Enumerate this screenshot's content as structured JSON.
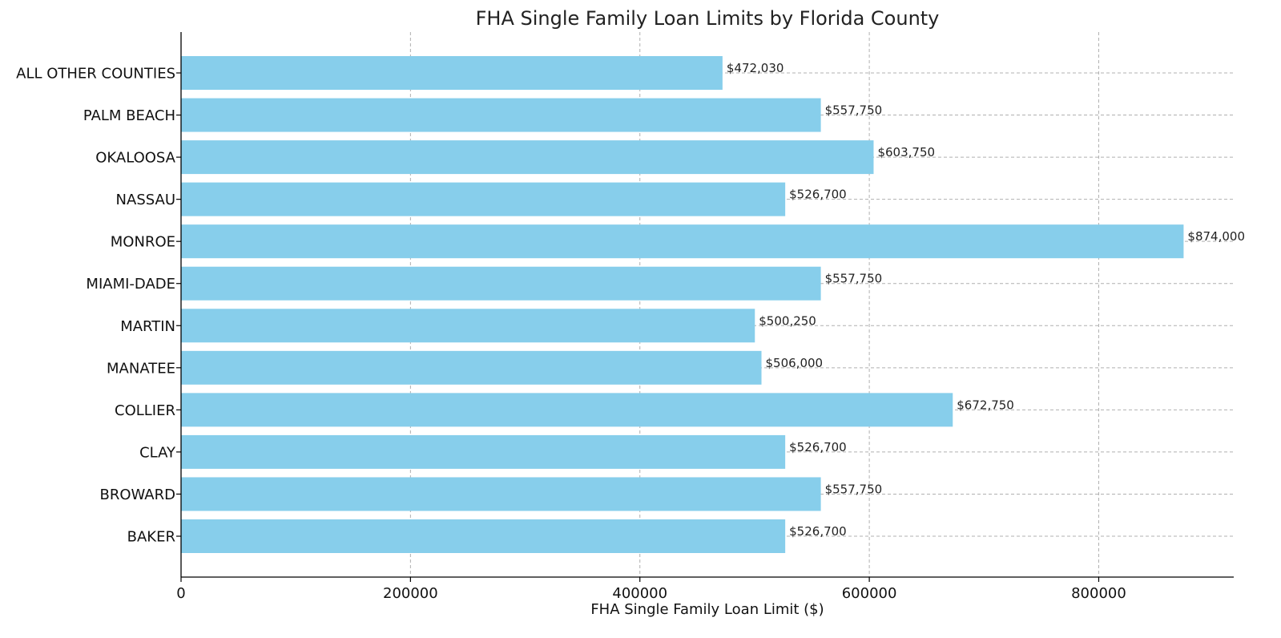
{
  "chart_data": {
    "type": "bar",
    "orientation": "horizontal",
    "title": "FHA Single Family Loan Limits by Florida County",
    "xlabel": "FHA Single Family Loan Limit ($)",
    "ylabel": "",
    "categories": [
      "ALL OTHER COUNTIES",
      "PALM BEACH",
      "OKALOOSA",
      "NASSAU",
      "MONROE",
      "MIAMI-DADE",
      "MARTIN",
      "MANATEE",
      "COLLIER",
      "CLAY",
      "BROWARD",
      "BAKER"
    ],
    "values": [
      472030,
      557750,
      603750,
      526700,
      874000,
      557750,
      500250,
      506000,
      672750,
      526700,
      557750,
      526700
    ],
    "data_labels": [
      "$472,030",
      "$557,750",
      "$603,750",
      "$526,700",
      "$874,000",
      "$557,750",
      "$500,250",
      "$506,000",
      "$672,750",
      "$526,700",
      "$557,750",
      "$526,700"
    ],
    "xticks": [
      0,
      200000,
      400000,
      600000,
      800000
    ],
    "xtick_labels": [
      "0",
      "200000",
      "400000",
      "600000",
      "800000"
    ],
    "xlim": [
      0,
      917700
    ],
    "grid": true,
    "bar_color": "#87ceeb"
  }
}
